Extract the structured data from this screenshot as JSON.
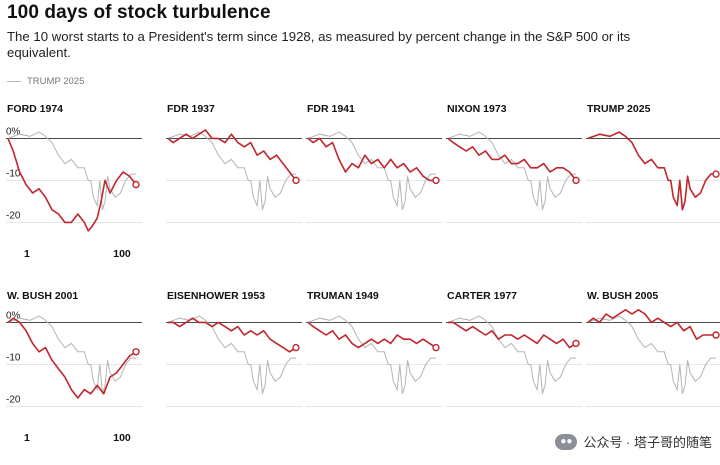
{
  "header": {
    "title": "100 days of stock turbulence",
    "subtitle": "The 10 worst starts to a President's term since 1928, as measured by percent change in the S&P 500 or its equivalent."
  },
  "legend": {
    "label": "TRUMP 2025",
    "color": "#b5b5b5"
  },
  "watermark": {
    "text": "公众号 · 塔子哥的随笔",
    "icon": "wechat-icon"
  },
  "colors": {
    "primary": "#c0262d",
    "overlay": "#b5b5b5",
    "zero_line": "#333333",
    "grid": "#dddddd"
  },
  "chart_data": {
    "type": "line",
    "layout": "small-multiples",
    "x_range": [
      1,
      100
    ],
    "x_tick_labels": [
      "1",
      "100"
    ],
    "y_range": [
      -23,
      2
    ],
    "y_ticks": [
      0,
      -10,
      -20
    ],
    "y_tick_labels": [
      "0%",
      "-10",
      "-20"
    ],
    "overlay": {
      "name": "TRUMP 2025",
      "x": [
        1,
        10,
        18,
        25,
        30,
        35,
        40,
        45,
        50,
        55,
        60,
        63,
        65,
        67,
        70,
        72,
        74,
        76,
        78,
        80,
        84,
        88,
        92,
        96,
        100
      ],
      "y": [
        0,
        1,
        0.5,
        1.5,
        0.5,
        -1,
        -4,
        -6,
        -5,
        -7,
        -7,
        -10,
        -10,
        -14,
        -16,
        -10,
        -17,
        -15,
        -9,
        -12,
        -14,
        -13,
        -10,
        -8.5,
        -8.5
      ]
    },
    "panels": [
      {
        "name": "FORD 1974",
        "x": [
          1,
          5,
          10,
          15,
          20,
          25,
          30,
          35,
          40,
          45,
          50,
          55,
          60,
          63,
          66,
          70,
          73,
          76,
          80,
          85,
          90,
          95,
          100
        ],
        "y": [
          0,
          -3,
          -8,
          -11,
          -13,
          -12,
          -14,
          -17,
          -18,
          -20,
          -20,
          -18,
          -20,
          -22,
          -21,
          -19,
          -15,
          -10,
          -13,
          -10,
          -8,
          -9,
          -11
        ]
      },
      {
        "name": "FDR 1937",
        "x": [
          1,
          5,
          10,
          15,
          20,
          25,
          30,
          35,
          40,
          45,
          50,
          55,
          60,
          65,
          70,
          75,
          80,
          85,
          90,
          95,
          100
        ],
        "y": [
          0,
          -1,
          0,
          1,
          0,
          1,
          2,
          0,
          0,
          -1,
          1,
          -1,
          -2,
          -1,
          -4,
          -3,
          -5,
          -4,
          -6,
          -8,
          -10
        ]
      },
      {
        "name": "FDR 1941",
        "x": [
          1,
          5,
          10,
          15,
          20,
          25,
          30,
          35,
          40,
          45,
          50,
          55,
          60,
          65,
          70,
          75,
          80,
          85,
          90,
          95,
          100
        ],
        "y": [
          0,
          -1,
          0,
          -2,
          -1,
          -5,
          -8,
          -6,
          -7,
          -4,
          -6,
          -5,
          -7,
          -5,
          -7,
          -6,
          -8,
          -7,
          -9,
          -10,
          -10
        ]
      },
      {
        "name": "NIXON 1973",
        "x": [
          1,
          5,
          10,
          15,
          20,
          25,
          30,
          35,
          40,
          45,
          50,
          55,
          60,
          65,
          70,
          75,
          80,
          85,
          90,
          95,
          100
        ],
        "y": [
          0,
          -1,
          -2,
          -3,
          -2,
          -4,
          -3,
          -5,
          -5,
          -4,
          -6,
          -6,
          -5,
          -7,
          -7,
          -6,
          -8,
          -7,
          -7,
          -8,
          -10
        ]
      },
      {
        "name": "TRUMP 2025",
        "x": [
          1,
          10,
          18,
          25,
          30,
          35,
          40,
          45,
          50,
          55,
          60,
          63,
          65,
          67,
          70,
          72,
          74,
          76,
          78,
          80,
          84,
          88,
          92,
          96,
          100
        ],
        "y": [
          0,
          1,
          0.5,
          1.5,
          0.5,
          -1,
          -4,
          -6,
          -5,
          -7,
          -7,
          -10,
          -10,
          -14,
          -16,
          -10,
          -17,
          -15,
          -9,
          -12,
          -14,
          -13,
          -10,
          -8.5,
          -8.5
        ]
      },
      {
        "name": "W. BUSH 2001",
        "x": [
          1,
          5,
          10,
          15,
          20,
          25,
          30,
          35,
          40,
          45,
          50,
          55,
          60,
          65,
          70,
          75,
          80,
          85,
          90,
          95,
          100
        ],
        "y": [
          0,
          1,
          0,
          -2,
          -5,
          -7,
          -6,
          -9,
          -11,
          -13,
          -16,
          -18,
          -16,
          -17,
          -15,
          -17,
          -13,
          -12,
          -10,
          -8,
          -7
        ]
      },
      {
        "name": "EISENHOWER 1953",
        "x": [
          1,
          5,
          10,
          15,
          20,
          25,
          30,
          35,
          40,
          45,
          50,
          55,
          60,
          65,
          70,
          75,
          80,
          85,
          90,
          95,
          100
        ],
        "y": [
          0,
          0,
          -1,
          0,
          1,
          0,
          0,
          -1,
          0,
          -1,
          -2,
          -1,
          -3,
          -2,
          -3,
          -2,
          -4,
          -5,
          -6,
          -7,
          -6
        ]
      },
      {
        "name": "TRUMAN 1949",
        "x": [
          1,
          5,
          10,
          15,
          20,
          25,
          30,
          35,
          40,
          45,
          50,
          55,
          60,
          65,
          70,
          75,
          80,
          85,
          90,
          95,
          100
        ],
        "y": [
          0,
          -1,
          -2,
          -3,
          -2,
          -4,
          -3,
          -5,
          -6,
          -5,
          -4,
          -5,
          -4,
          -5,
          -3,
          -4,
          -4,
          -5,
          -4,
          -5,
          -6
        ]
      },
      {
        "name": "CARTER 1977",
        "x": [
          1,
          5,
          10,
          15,
          20,
          25,
          30,
          35,
          40,
          45,
          50,
          55,
          60,
          65,
          70,
          75,
          80,
          85,
          90,
          95,
          100
        ],
        "y": [
          0,
          0,
          -1,
          -2,
          -1,
          -2,
          -3,
          -2,
          -4,
          -3,
          -3,
          -4,
          -3,
          -4,
          -5,
          -3,
          -4,
          -5,
          -4,
          -6,
          -5
        ]
      },
      {
        "name": "W. BUSH 2005",
        "x": [
          1,
          5,
          10,
          15,
          20,
          25,
          30,
          35,
          40,
          45,
          50,
          55,
          60,
          65,
          70,
          75,
          80,
          85,
          90,
          95,
          100
        ],
        "y": [
          0,
          1,
          0,
          2,
          1,
          2,
          3,
          2,
          3,
          2,
          0,
          1,
          0,
          -1,
          0,
          -2,
          -1,
          -4,
          -3,
          -3,
          -3
        ]
      }
    ]
  }
}
